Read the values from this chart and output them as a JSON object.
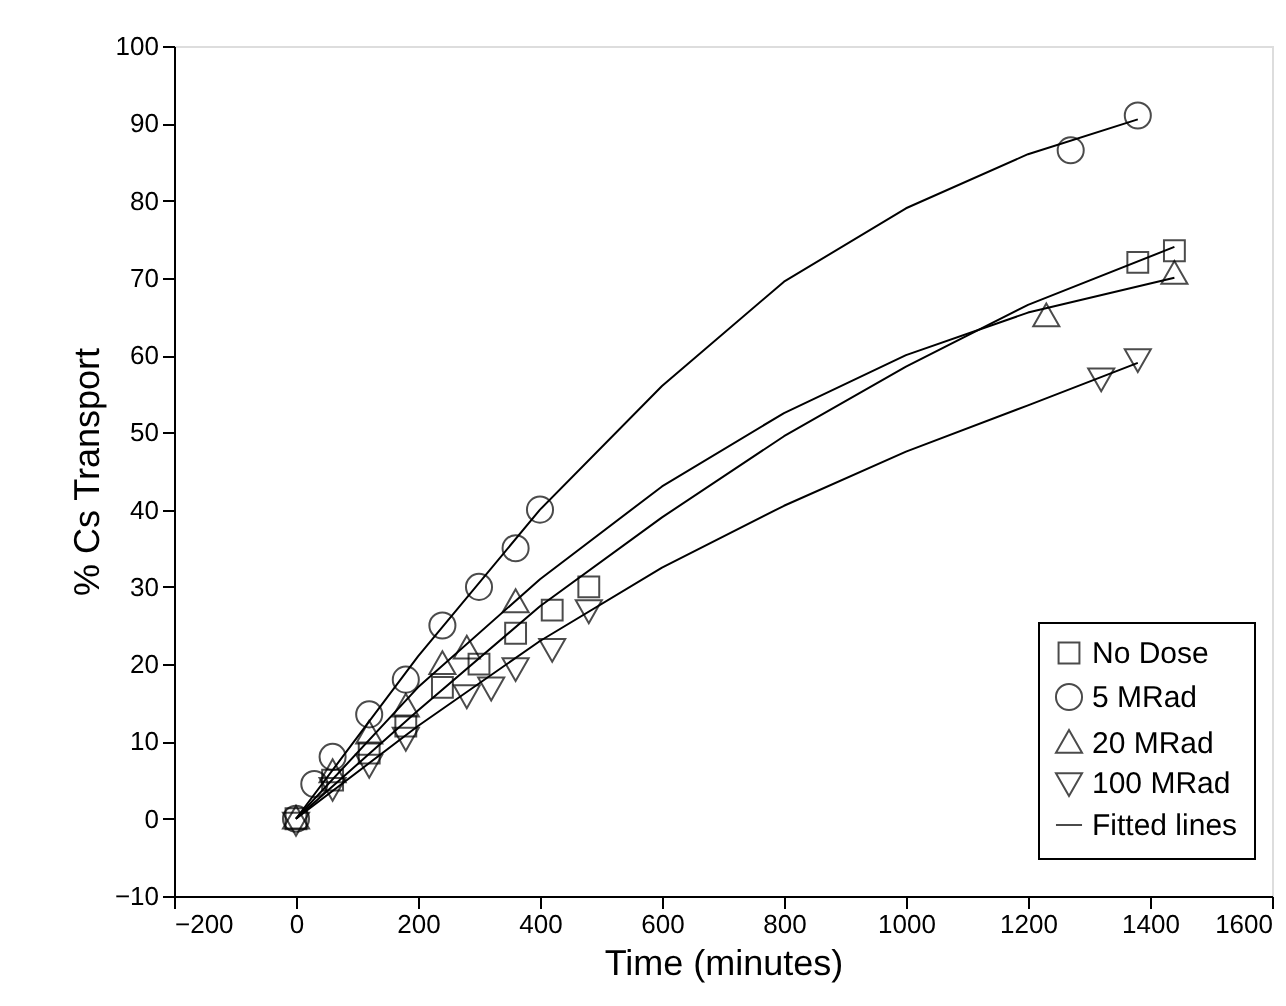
{
  "chart_data": {
    "type": "scatter",
    "xlabel": "Time (minutes)",
    "ylabel": "% Cs Transport",
    "xlim": [
      -200,
      1600
    ],
    "xticks": [
      -200,
      0,
      200,
      400,
      600,
      800,
      1000,
      1200,
      1400,
      1600
    ],
    "ylim": [
      -10,
      100
    ],
    "yticks": [
      -10,
      0,
      10,
      20,
      30,
      40,
      50,
      60,
      70,
      80,
      90,
      100
    ],
    "grid": false,
    "legend": "bottom right",
    "series": [
      {
        "name": "No Dose",
        "color": "#000000",
        "marker": "square",
        "x": [
          0,
          60,
          120,
          180,
          240,
          300,
          360,
          420,
          480,
          1380,
          1440
        ],
        "values": [
          0,
          5,
          8.5,
          12,
          17,
          20,
          24,
          27,
          30,
          72,
          73.5
        ]
      },
      {
        "name": "5 MRad",
        "color": "#000000",
        "marker": "circle",
        "x": [
          0,
          30,
          60,
          120,
          180,
          240,
          300,
          360,
          400,
          1270,
          1380
        ],
        "values": [
          0,
          4.5,
          8,
          13.5,
          18,
          25,
          30,
          35,
          40,
          86.5,
          91
        ]
      },
      {
        "name": "20 MRad",
        "color": "#000000",
        "marker": "triangle",
        "x": [
          0,
          60,
          120,
          180,
          240,
          280,
          360,
          1230,
          1440
        ],
        "values": [
          0,
          6,
          11,
          14.5,
          20,
          22,
          28,
          65,
          70.5
        ]
      },
      {
        "name": "100 MRad",
        "color": "#000000",
        "marker": "triangle-down",
        "x": [
          0,
          60,
          120,
          180,
          280,
          320,
          360,
          420,
          480,
          1320,
          1380
        ],
        "values": [
          -0.5,
          4,
          7,
          10.5,
          16,
          17,
          19.5,
          22,
          27,
          57,
          59.5
        ]
      },
      {
        "name": "Fitted lines",
        "type": "line",
        "color": "#000000",
        "marker": "none",
        "x": [
          0,
          200,
          400,
          600,
          800,
          1000,
          1200,
          1440
        ],
        "values": [
          0,
          14,
          27.5,
          39,
          49.5,
          58.5,
          66.5,
          74
        ]
      },
      {
        "type": "line",
        "color": "#000000",
        "marker": "none",
        "x": [
          0,
          200,
          400,
          600,
          800,
          1000,
          1200,
          1380
        ],
        "values": [
          0,
          21,
          40,
          56,
          69.5,
          79,
          86,
          90.5
        ]
      },
      {
        "type": "line",
        "color": "#000000",
        "marker": "none",
        "x": [
          0,
          200,
          400,
          600,
          800,
          1000,
          1200,
          1440
        ],
        "values": [
          0,
          17,
          31,
          43,
          52.5,
          60,
          65.5,
          70
        ]
      },
      {
        "type": "line",
        "color": "#000000",
        "marker": "none",
        "x": [
          0,
          200,
          400,
          600,
          800,
          1000,
          1200,
          1380
        ],
        "values": [
          0,
          12,
          23,
          32.5,
          40.5,
          47.5,
          53.5,
          59
        ]
      }
    ]
  }
}
